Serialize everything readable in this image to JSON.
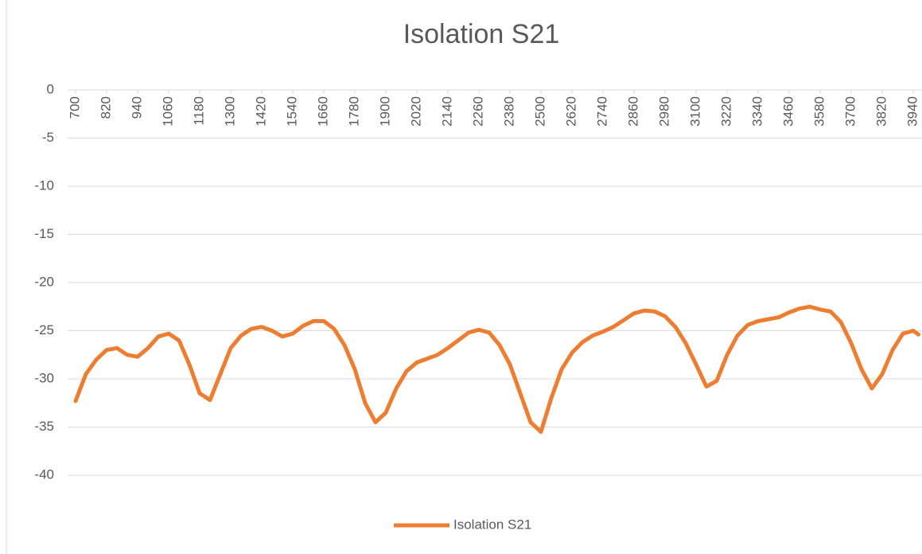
{
  "chart_data": {
    "type": "line",
    "title": "Isolation S21",
    "x": [
      700,
      740,
      780,
      820,
      860,
      900,
      940,
      980,
      1020,
      1060,
      1100,
      1140,
      1180,
      1220,
      1260,
      1300,
      1340,
      1380,
      1420,
      1460,
      1500,
      1540,
      1580,
      1620,
      1660,
      1700,
      1740,
      1780,
      1820,
      1860,
      1900,
      1940,
      1980,
      2020,
      2060,
      2100,
      2140,
      2180,
      2220,
      2260,
      2300,
      2340,
      2380,
      2420,
      2460,
      2500,
      2540,
      2580,
      2620,
      2660,
      2700,
      2740,
      2780,
      2820,
      2860,
      2900,
      2940,
      2980,
      3020,
      3060,
      3100,
      3140,
      3180,
      3220,
      3260,
      3300,
      3340,
      3380,
      3420,
      3460,
      3500,
      3540,
      3580,
      3620,
      3660,
      3700,
      3740,
      3780,
      3820,
      3860,
      3900,
      3940,
      3960
    ],
    "series": [
      {
        "name": "Isolation S21",
        "color": "#ed7d31",
        "values": [
          -32.3,
          -29.5,
          -28,
          -27,
          -26.8,
          -27.5,
          -27.7,
          -26.8,
          -25.6,
          -25.3,
          -26,
          -28.5,
          -31.5,
          -32.2,
          -29.5,
          -26.8,
          -25.5,
          -24.8,
          -24.6,
          -25,
          -25.6,
          -25.3,
          -24.5,
          -24,
          -24,
          -24.8,
          -26.5,
          -29,
          -32.5,
          -34.5,
          -33.5,
          -31,
          -29.2,
          -28.3,
          -27.9,
          -27.5,
          -26.8,
          -26,
          -25.2,
          -24.9,
          -25.2,
          -26.5,
          -28.5,
          -31.5,
          -34.5,
          -35.5,
          -32,
          -29,
          -27.3,
          -26.2,
          -25.5,
          -25.1,
          -24.6,
          -23.9,
          -23.2,
          -22.9,
          -23,
          -23.5,
          -24.6,
          -26.3,
          -28.5,
          -30.8,
          -30.2,
          -27.5,
          -25.5,
          -24.4,
          -24,
          -23.8,
          -23.6,
          -23.1,
          -22.7,
          -22.5,
          -22.8,
          -23,
          -24.1,
          -26.3,
          -29,
          -31,
          -29.5,
          -27,
          -25.3,
          -25,
          -25.4
        ]
      }
    ],
    "xlim": [
      700,
      3960
    ],
    "xticks": [
      700,
      820,
      940,
      1060,
      1180,
      1300,
      1420,
      1540,
      1660,
      1780,
      1900,
      2020,
      2140,
      2260,
      2380,
      2500,
      2620,
      2740,
      2860,
      2980,
      3100,
      3220,
      3340,
      3460,
      3580,
      3700,
      3820,
      3940
    ],
    "ylim": [
      -40,
      0
    ],
    "yticks": [
      0,
      -5,
      -10,
      -15,
      -20,
      -25,
      -30,
      -35,
      -40
    ],
    "grid": true,
    "legend": "bottom"
  }
}
